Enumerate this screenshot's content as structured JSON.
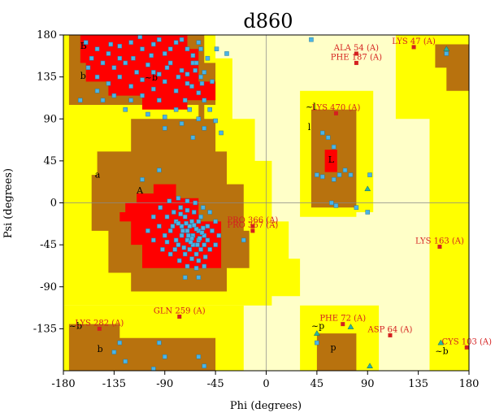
{
  "chart_data": {
    "type": "scatter",
    "title": "d860",
    "xlabel": "Phi (degrees)",
    "ylabel": "Psi (degrees)",
    "xlim": [
      -180,
      180
    ],
    "ylim": [
      -180,
      180
    ],
    "xticks": [
      "-180",
      "-135",
      "-90",
      "-45",
      "0",
      "45",
      "90",
      "135",
      "180"
    ],
    "yticks": [
      "180",
      "135",
      "90",
      "45",
      "0",
      "-45",
      "-90",
      "-135"
    ],
    "grid": false,
    "colors": {
      "core": "#ff0000",
      "allowed": "#b8720e",
      "generous": "#ffff00",
      "outside": "#ffffc8",
      "general_point": "#4ab4e6",
      "gly_point": "#2ab4a0",
      "outlier": "#d42020"
    },
    "region_labels": [
      {
        "text": "B",
        "x": -165,
        "y": 165
      },
      {
        "text": "b",
        "x": -165,
        "y": 133
      },
      {
        "text": "a",
        "x": -152,
        "y": 27
      },
      {
        "text": "A",
        "x": -115,
        "y": 10
      },
      {
        "text": "l",
        "x": 37,
        "y": 78
      },
      {
        "text": "L",
        "x": 55,
        "y": 43
      },
      {
        "text": "~b",
        "x": -108,
        "y": 131
      },
      {
        "text": "~l",
        "x": 35,
        "y": 100
      },
      {
        "text": "~b",
        "x": -175,
        "y": -135
      },
      {
        "text": "~p",
        "x": 40,
        "y": -135
      },
      {
        "text": "p",
        "x": 57,
        "y": -158
      },
      {
        "text": "b",
        "x": -150,
        "y": -160
      },
      {
        "text": "~b",
        "x": 150,
        "y": -162
      }
    ],
    "outliers": [
      {
        "label": "LYS 47 (A)",
        "phi": 131,
        "psi": 167
      },
      {
        "label": "ALA 54 (A)",
        "phi": 80,
        "psi": 160
      },
      {
        "label": "PHE 187 (A)",
        "phi": 80,
        "psi": 150
      },
      {
        "label": "LYS 470 (A)",
        "phi": 62,
        "psi": 96
      },
      {
        "label": "PRO 366 (A)",
        "phi": -12,
        "psi": -25
      },
      {
        "label": "PRO 367 (A)",
        "phi": -12,
        "psi": -30
      },
      {
        "label": "LYS 163 (A)",
        "phi": 154,
        "psi": -47
      },
      {
        "label": "GLN 259 (A)",
        "phi": -77,
        "psi": -122
      },
      {
        "label": "LYS 282 (A)",
        "phi": -148,
        "psi": -135
      },
      {
        "label": "PHE 72 (A)",
        "phi": 68,
        "psi": -130
      },
      {
        "label": "ASP 64 (A)",
        "phi": 110,
        "psi": -142
      },
      {
        "label": "CYS 103 (A)",
        "phi": 178,
        "psi": -155
      }
    ],
    "series": [
      {
        "name": "General",
        "points": [
          [
            -160,
            172
          ],
          [
            -150,
            165
          ],
          [
            -140,
            160
          ],
          [
            -130,
            168
          ],
          [
            -120,
            172
          ],
          [
            -110,
            165
          ],
          [
            -100,
            170
          ],
          [
            -90,
            160
          ],
          [
            -80,
            172
          ],
          [
            -70,
            165
          ],
          [
            -60,
            172
          ],
          [
            -155,
            155
          ],
          [
            -145,
            150
          ],
          [
            -135,
            145
          ],
          [
            -125,
            150
          ],
          [
            -115,
            140
          ],
          [
            -105,
            148
          ],
          [
            -95,
            138
          ],
          [
            -85,
            150
          ],
          [
            -75,
            142
          ],
          [
            -65,
            150
          ],
          [
            -55,
            140
          ],
          [
            -150,
            135
          ],
          [
            -140,
            128
          ],
          [
            -130,
            135
          ],
          [
            -120,
            125
          ],
          [
            -110,
            132
          ],
          [
            -100,
            122
          ],
          [
            -90,
            130
          ],
          [
            -80,
            120
          ],
          [
            -70,
            128
          ],
          [
            -60,
            118
          ],
          [
            -62,
            150
          ],
          [
            -58,
            135
          ],
          [
            -66,
            125
          ],
          [
            -72,
            110
          ],
          [
            -55,
            110
          ],
          [
            -50,
            100
          ],
          [
            -68,
            100
          ],
          [
            -80,
            100
          ],
          [
            -95,
            110
          ],
          [
            -110,
            115
          ],
          [
            -120,
            110
          ],
          [
            -135,
            115
          ],
          [
            -145,
            110
          ],
          [
            -125,
            100
          ],
          [
            -105,
            95
          ],
          [
            -90,
            92
          ],
          [
            -85,
            165
          ],
          [
            -95,
            175
          ],
          [
            -75,
            175
          ],
          [
            -65,
            158
          ],
          [
            -58,
            165
          ],
          [
            -52,
            155
          ],
          [
            -48,
            130
          ],
          [
            -60,
            90
          ],
          [
            -75,
            85
          ],
          [
            -90,
            80
          ],
          [
            -55,
            80
          ],
          [
            -65,
            70
          ],
          [
            -165,
            110
          ],
          [
            -158,
            145
          ],
          [
            -118,
            155
          ],
          [
            -102,
            158
          ],
          [
            -88,
            145
          ],
          [
            -78,
            135
          ],
          [
            -100,
            140
          ],
          [
            -130,
            155
          ],
          [
            -138,
            170
          ],
          [
            -112,
            178
          ],
          [
            -70,
            138
          ],
          [
            -63,
            142
          ],
          [
            -150,
            120
          ],
          [
            -45,
            88
          ],
          [
            -40,
            75
          ],
          [
            -35,
            160
          ],
          [
            -44,
            165
          ],
          [
            -57,
            128
          ],
          [
            -80,
            -20
          ],
          [
            -75,
            -25
          ],
          [
            -70,
            -30
          ],
          [
            -65,
            -35
          ],
          [
            -60,
            -40
          ],
          [
            -55,
            -45
          ],
          [
            -70,
            -40
          ],
          [
            -65,
            -45
          ],
          [
            -60,
            -30
          ],
          [
            -55,
            -35
          ],
          [
            -75,
            -35
          ],
          [
            -80,
            -40
          ],
          [
            -68,
            -50
          ],
          [
            -62,
            -55
          ],
          [
            -58,
            -50
          ],
          [
            -52,
            -40
          ],
          [
            -72,
            -15
          ],
          [
            -66,
            -20
          ],
          [
            -60,
            -20
          ],
          [
            -85,
            -30
          ],
          [
            -90,
            -35
          ],
          [
            -78,
            -45
          ],
          [
            -72,
            -55
          ],
          [
            -66,
            -60
          ],
          [
            -60,
            -62
          ],
          [
            -54,
            -58
          ],
          [
            -50,
            -50
          ],
          [
            -48,
            -30
          ],
          [
            -52,
            -25
          ],
          [
            -58,
            -15
          ],
          [
            -64,
            -10
          ],
          [
            -70,
            -8
          ],
          [
            -76,
            -5
          ],
          [
            -82,
            -10
          ],
          [
            -88,
            -15
          ],
          [
            -95,
            -25
          ],
          [
            -100,
            -40
          ],
          [
            -92,
            -50
          ],
          [
            -85,
            -55
          ],
          [
            -77,
            -62
          ],
          [
            -70,
            -68
          ],
          [
            -62,
            -70
          ],
          [
            -55,
            -68
          ],
          [
            -45,
            -45
          ],
          [
            -42,
            -35
          ],
          [
            -45,
            -20
          ],
          [
            -50,
            -10
          ],
          [
            -56,
            -5
          ],
          [
            -63,
            0
          ],
          [
            -70,
            2
          ],
          [
            -78,
            5
          ],
          [
            -86,
            2
          ],
          [
            -94,
            -5
          ],
          [
            -100,
            -15
          ],
          [
            -105,
            -30
          ],
          [
            -68,
            -25
          ],
          [
            -62,
            -28
          ],
          [
            -57,
            -32
          ],
          [
            -66,
            -38
          ],
          [
            -74,
            -30
          ],
          [
            -78,
            -22
          ],
          [
            -61,
            -45
          ],
          [
            -67,
            -42
          ],
          [
            -73,
            -48
          ],
          [
            -69,
            -35
          ],
          [
            -64,
            -24
          ],
          [
            -59,
            -38
          ],
          [
            -56,
            -27
          ],
          [
            -71,
            -22
          ],
          [
            -76,
            -12
          ],
          [
            -83,
            -25
          ],
          [
            -88,
            -42
          ],
          [
            -81,
            -50
          ],
          [
            -110,
            25
          ],
          [
            -95,
            35
          ],
          [
            -72,
            -80
          ],
          [
            -60,
            -80
          ],
          [
            -135,
            -160
          ],
          [
            -130,
            -150
          ],
          [
            -95,
            -150
          ],
          [
            -90,
            -165
          ],
          [
            -60,
            -165
          ],
          [
            -55,
            -175
          ],
          [
            -125,
            -170
          ],
          [
            -100,
            -178
          ],
          [
            -20,
            -40
          ],
          [
            50,
            75
          ],
          [
            55,
            70
          ],
          [
            60,
            60
          ],
          [
            45,
            30
          ],
          [
            50,
            28
          ],
          [
            60,
            25
          ],
          [
            65,
            30
          ],
          [
            75,
            30
          ],
          [
            70,
            35
          ],
          [
            80,
            -5
          ],
          [
            90,
            -10
          ],
          [
            58,
            0
          ],
          [
            62,
            -3
          ],
          [
            40,
            175
          ],
          [
            160,
            160
          ],
          [
            92,
            30
          ],
          [
            45,
            -150
          ]
        ]
      },
      {
        "name": "Glycine",
        "points": [
          [
            90,
            15
          ],
          [
            45,
            -140
          ],
          [
            75,
            -133
          ],
          [
            155,
            -150
          ],
          [
            92,
            -175
          ],
          [
            160,
            165
          ]
        ]
      }
    ]
  }
}
